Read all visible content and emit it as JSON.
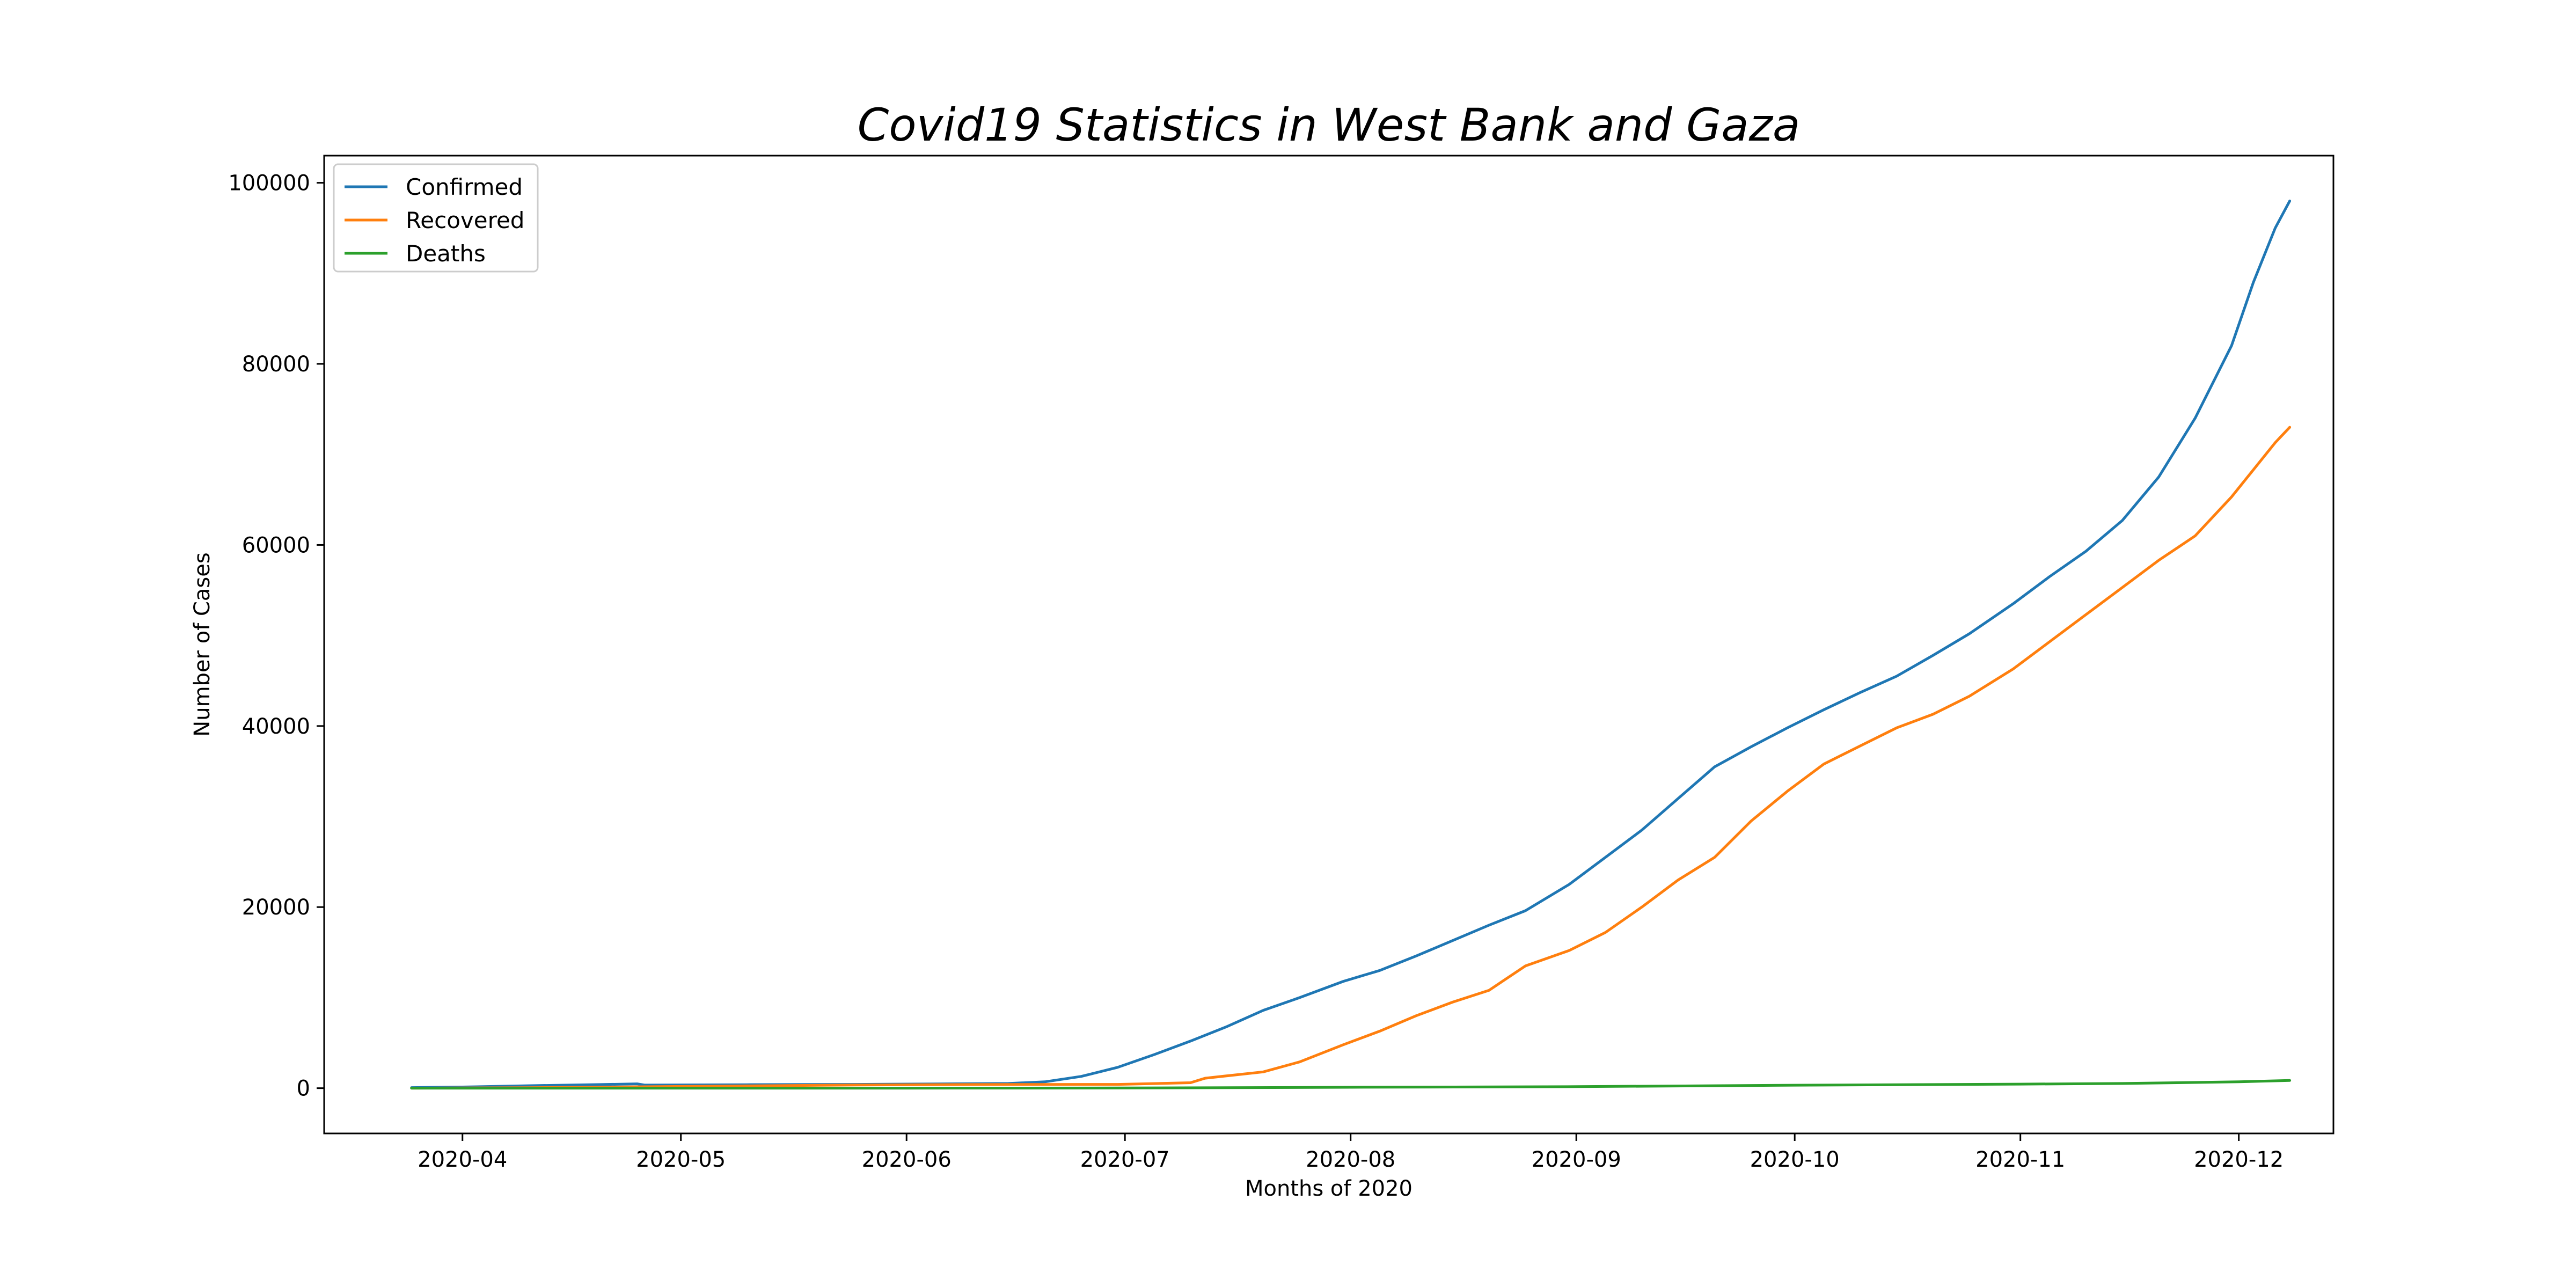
{
  "chart_data": {
    "type": "line",
    "title": "Covid19 Statistics in West Bank and Gaza",
    "xlabel": "Months of 2020",
    "ylabel": "Number of Cases",
    "x_axis": "date",
    "xlim": [
      "2020-03-13",
      "2020-12-14"
    ],
    "ylim": [
      -5000,
      103000
    ],
    "x_ticks": [
      "2020-04-01",
      "2020-05-01",
      "2020-06-01",
      "2020-07-01",
      "2020-08-01",
      "2020-09-01",
      "2020-10-01",
      "2020-11-01",
      "2020-12-01"
    ],
    "x_tick_labels": [
      "2020-04",
      "2020-05",
      "2020-06",
      "2020-07",
      "2020-08",
      "2020-09",
      "2020-10",
      "2020-11",
      "2020-12"
    ],
    "y_ticks": [
      0,
      20000,
      40000,
      60000,
      80000,
      100000
    ],
    "y_tick_labels": [
      "0",
      "20000",
      "40000",
      "60000",
      "80000",
      "100000"
    ],
    "grid": false,
    "legend": "top-left",
    "series": [
      {
        "name": "Confirmed",
        "color": "#1f77b4",
        "points": [
          [
            "2020-03-25",
            60
          ],
          [
            "2020-04-01",
            130
          ],
          [
            "2020-04-10",
            270
          ],
          [
            "2020-04-20",
            400
          ],
          [
            "2020-04-25",
            480
          ],
          [
            "2020-04-26",
            340
          ],
          [
            "2020-05-10",
            380
          ],
          [
            "2020-05-25",
            420
          ],
          [
            "2020-06-05",
            470
          ],
          [
            "2020-06-15",
            520
          ],
          [
            "2020-06-20",
            700
          ],
          [
            "2020-06-25",
            1300
          ],
          [
            "2020-06-30",
            2300
          ],
          [
            "2020-07-05",
            3700
          ],
          [
            "2020-07-10",
            5200
          ],
          [
            "2020-07-15",
            6800
          ],
          [
            "2020-07-20",
            8600
          ],
          [
            "2020-07-25",
            10000
          ],
          [
            "2020-07-31",
            11800
          ],
          [
            "2020-08-05",
            13000
          ],
          [
            "2020-08-10",
            14600
          ],
          [
            "2020-08-15",
            16300
          ],
          [
            "2020-08-20",
            18000
          ],
          [
            "2020-08-25",
            19600
          ],
          [
            "2020-08-31",
            22500
          ],
          [
            "2020-09-05",
            25500
          ],
          [
            "2020-09-10",
            28500
          ],
          [
            "2020-09-15",
            32000
          ],
          [
            "2020-09-20",
            35500
          ],
          [
            "2020-09-25",
            37700
          ],
          [
            "2020-09-30",
            39800
          ],
          [
            "2020-10-05",
            41800
          ],
          [
            "2020-10-10",
            43700
          ],
          [
            "2020-10-15",
            45500
          ],
          [
            "2020-10-20",
            47800
          ],
          [
            "2020-10-25",
            50200
          ],
          [
            "2020-10-31",
            53500
          ],
          [
            "2020-11-05",
            56500
          ],
          [
            "2020-11-10",
            59300
          ],
          [
            "2020-11-15",
            62700
          ],
          [
            "2020-11-20",
            67500
          ],
          [
            "2020-11-25",
            74000
          ],
          [
            "2020-11-30",
            82000
          ],
          [
            "2020-12-03",
            89000
          ],
          [
            "2020-12-06",
            95000
          ],
          [
            "2020-12-08",
            98000
          ]
        ]
      },
      {
        "name": "Recovered",
        "color": "#ff7f0e",
        "points": [
          [
            "2020-03-25",
            0
          ],
          [
            "2020-04-10",
            50
          ],
          [
            "2020-04-25",
            150
          ],
          [
            "2020-05-10",
            250
          ],
          [
            "2020-05-25",
            350
          ],
          [
            "2020-06-10",
            400
          ],
          [
            "2020-06-30",
            420
          ],
          [
            "2020-07-10",
            600
          ],
          [
            "2020-07-12",
            1100
          ],
          [
            "2020-07-20",
            1800
          ],
          [
            "2020-07-25",
            2900
          ],
          [
            "2020-07-31",
            4800
          ],
          [
            "2020-08-05",
            6300
          ],
          [
            "2020-08-10",
            8000
          ],
          [
            "2020-08-15",
            9500
          ],
          [
            "2020-08-20",
            10800
          ],
          [
            "2020-08-25",
            13500
          ],
          [
            "2020-08-31",
            15200
          ],
          [
            "2020-09-05",
            17200
          ],
          [
            "2020-09-10",
            20000
          ],
          [
            "2020-09-15",
            23000
          ],
          [
            "2020-09-20",
            25500
          ],
          [
            "2020-09-25",
            29500
          ],
          [
            "2020-09-30",
            32800
          ],
          [
            "2020-10-05",
            35800
          ],
          [
            "2020-10-10",
            37800
          ],
          [
            "2020-10-15",
            39800
          ],
          [
            "2020-10-20",
            41300
          ],
          [
            "2020-10-25",
            43300
          ],
          [
            "2020-10-31",
            46300
          ],
          [
            "2020-11-05",
            49300
          ],
          [
            "2020-11-10",
            52300
          ],
          [
            "2020-11-15",
            55300
          ],
          [
            "2020-11-20",
            58300
          ],
          [
            "2020-11-25",
            61000
          ],
          [
            "2020-11-30",
            65300
          ],
          [
            "2020-12-03",
            68300
          ],
          [
            "2020-12-06",
            71300
          ],
          [
            "2020-12-08",
            73000
          ]
        ]
      },
      {
        "name": "Deaths",
        "color": "#2ca02c",
        "points": [
          [
            "2020-03-25",
            0
          ],
          [
            "2020-05-01",
            2
          ],
          [
            "2020-06-01",
            3
          ],
          [
            "2020-07-01",
            20
          ],
          [
            "2020-08-01",
            100
          ],
          [
            "2020-09-01",
            170
          ],
          [
            "2020-10-01",
            330
          ],
          [
            "2020-11-01",
            450
          ],
          [
            "2020-11-15",
            520
          ],
          [
            "2020-12-01",
            700
          ],
          [
            "2020-12-08",
            850
          ]
        ]
      }
    ]
  }
}
